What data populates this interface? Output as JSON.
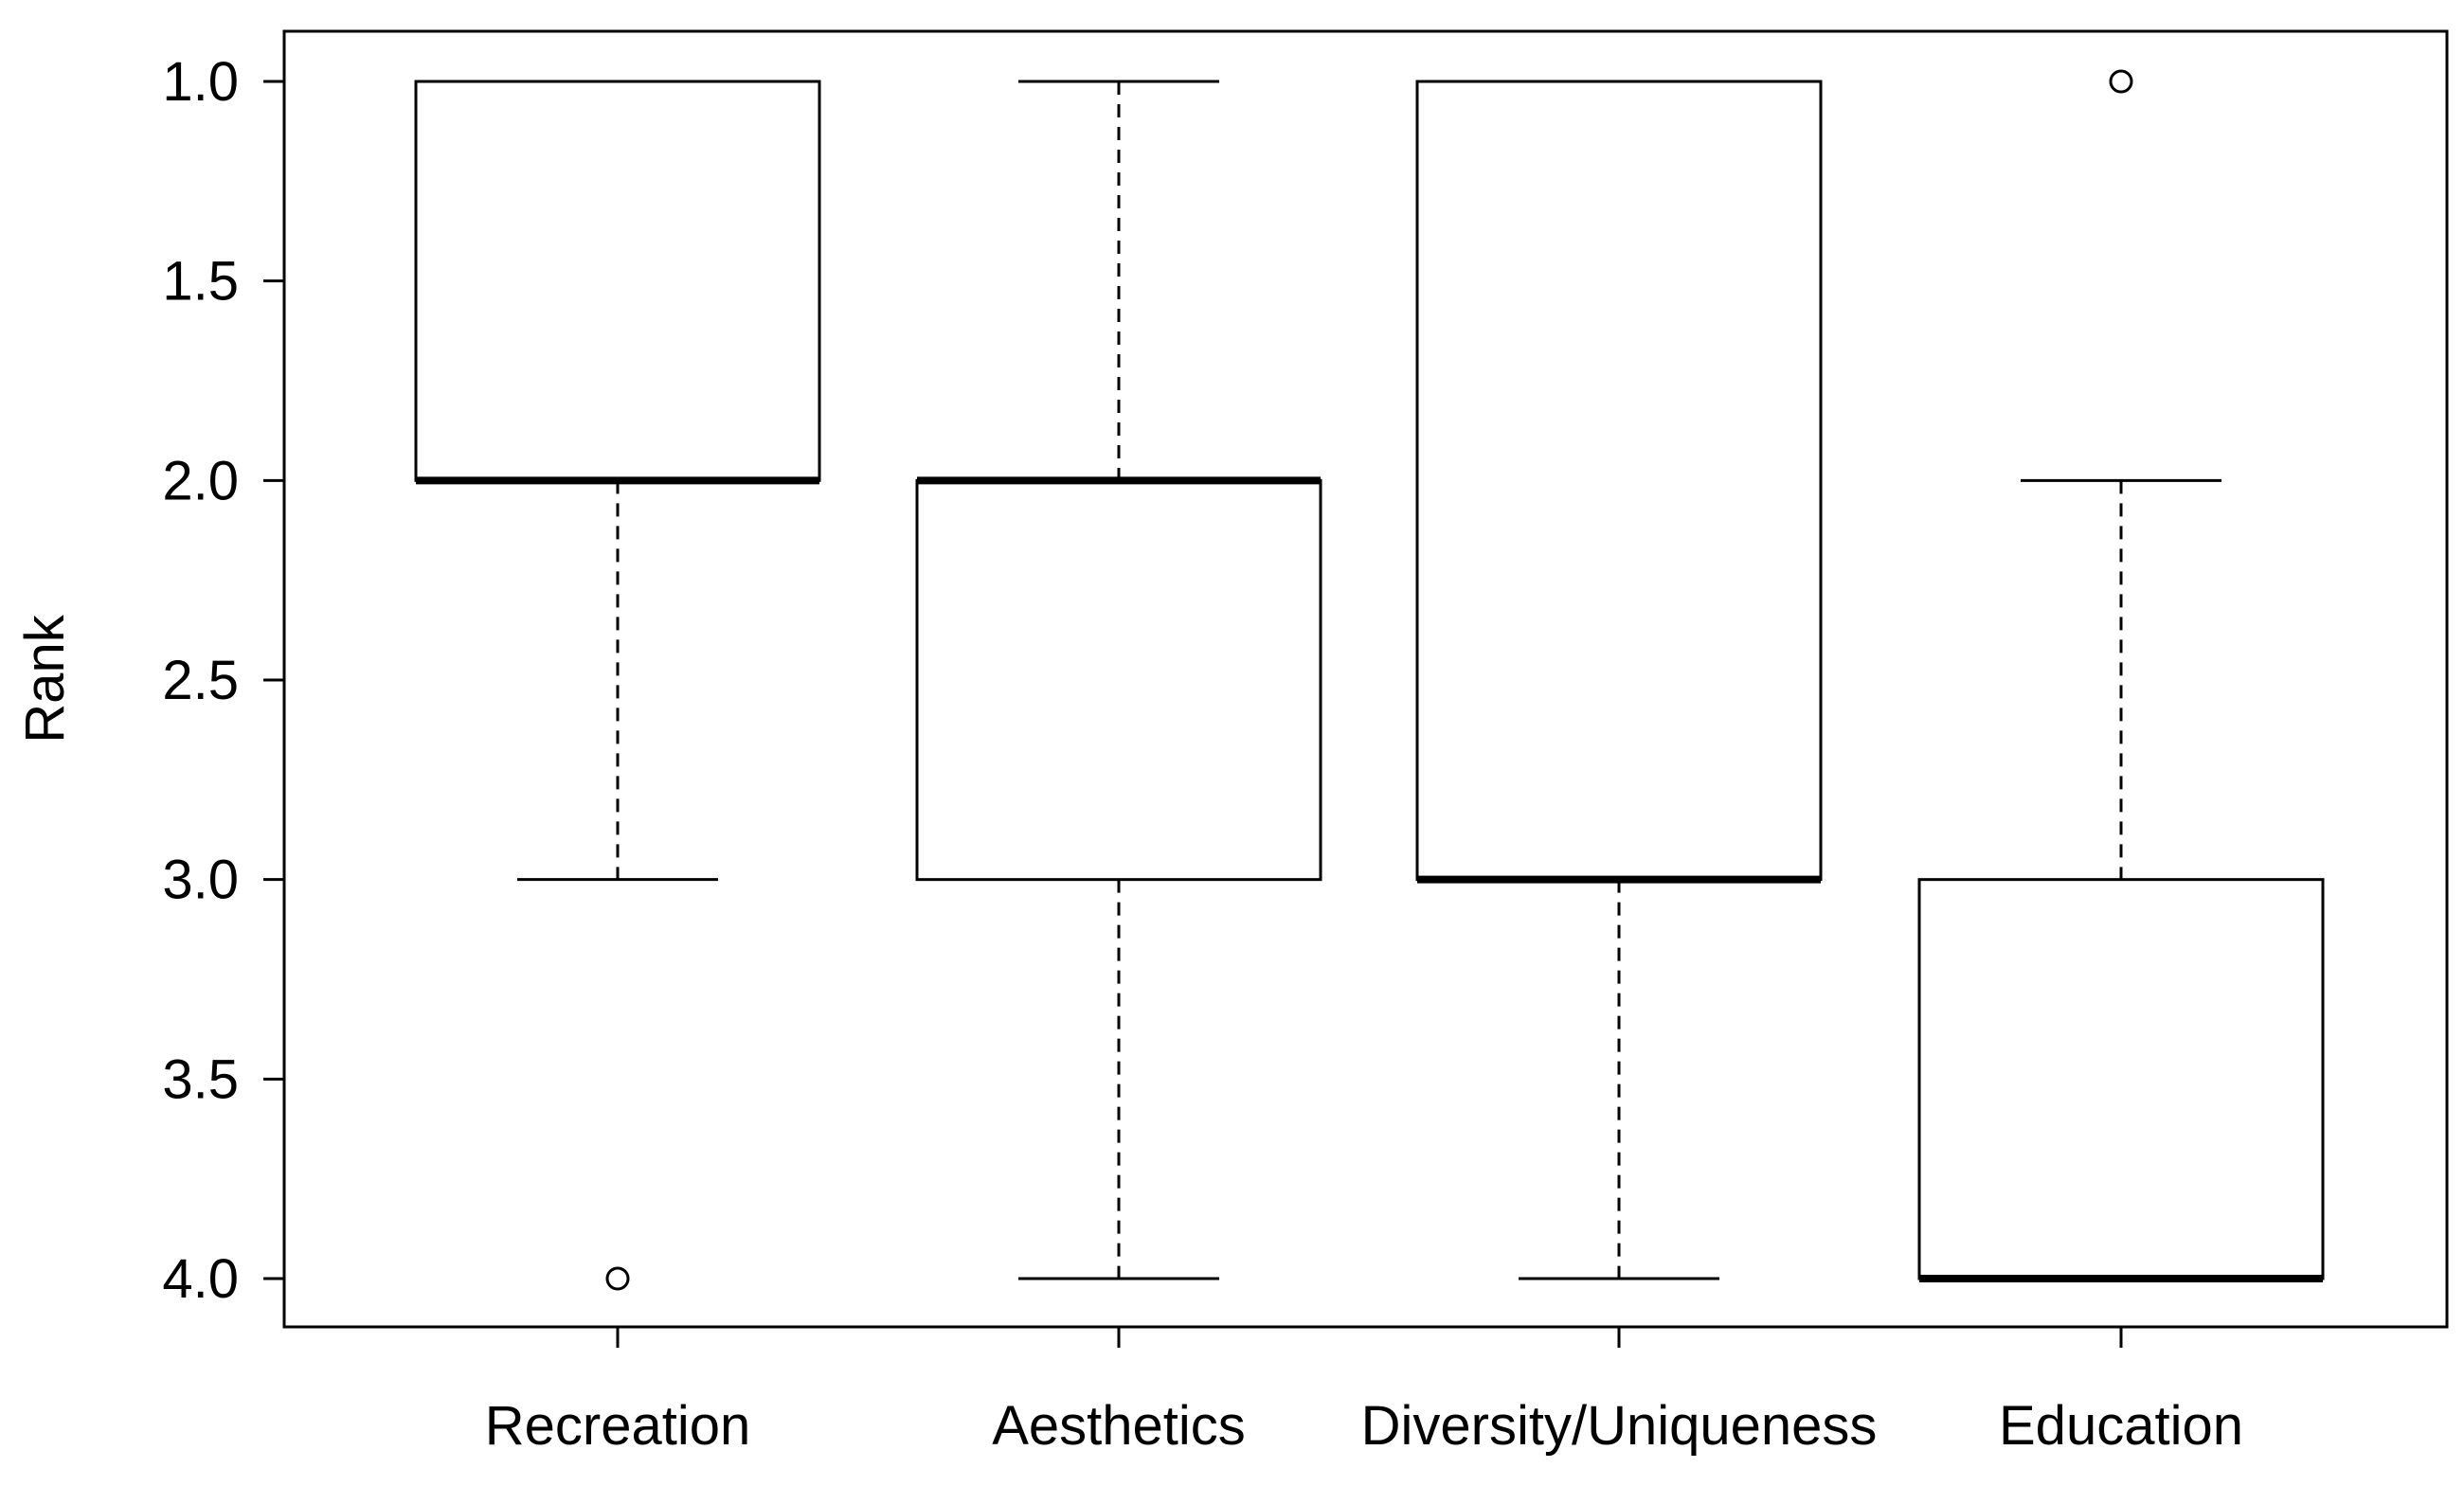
{
  "chart_data": {
    "type": "boxplot",
    "ylabel": "Rank",
    "xlabel": "",
    "ylim": [
      1.0,
      4.0
    ],
    "y_axis_reversed": true,
    "y_ticks": [
      1.0,
      1.5,
      2.0,
      2.5,
      3.0,
      3.5,
      4.0
    ],
    "y_tick_labels": [
      "1.0",
      "1.5",
      "2.0",
      "2.5",
      "3.0",
      "3.5",
      "4.0"
    ],
    "grid": false,
    "categories": [
      "Recreation",
      "Aesthetics",
      "Diversity/Uniqueness",
      "Education"
    ],
    "boxes": [
      {
        "category": "Recreation",
        "whisker_low": 1.0,
        "q1": 1.0,
        "median": 2.0,
        "q3": 2.0,
        "whisker_high": 3.0,
        "outliers": [
          4.0
        ]
      },
      {
        "category": "Aesthetics",
        "whisker_low": 1.0,
        "q1": 2.0,
        "median": 2.0,
        "q3": 3.0,
        "whisker_high": 4.0,
        "outliers": []
      },
      {
        "category": "Diversity/Uniqueness",
        "whisker_low": 1.0,
        "q1": 1.0,
        "median": 3.0,
        "q3": 3.0,
        "whisker_high": 4.0,
        "outliers": []
      },
      {
        "category": "Education",
        "whisker_low": 2.0,
        "q1": 3.0,
        "median": 4.0,
        "q3": 4.0,
        "whisker_high": 4.0,
        "outliers": [
          1.0
        ]
      }
    ]
  }
}
